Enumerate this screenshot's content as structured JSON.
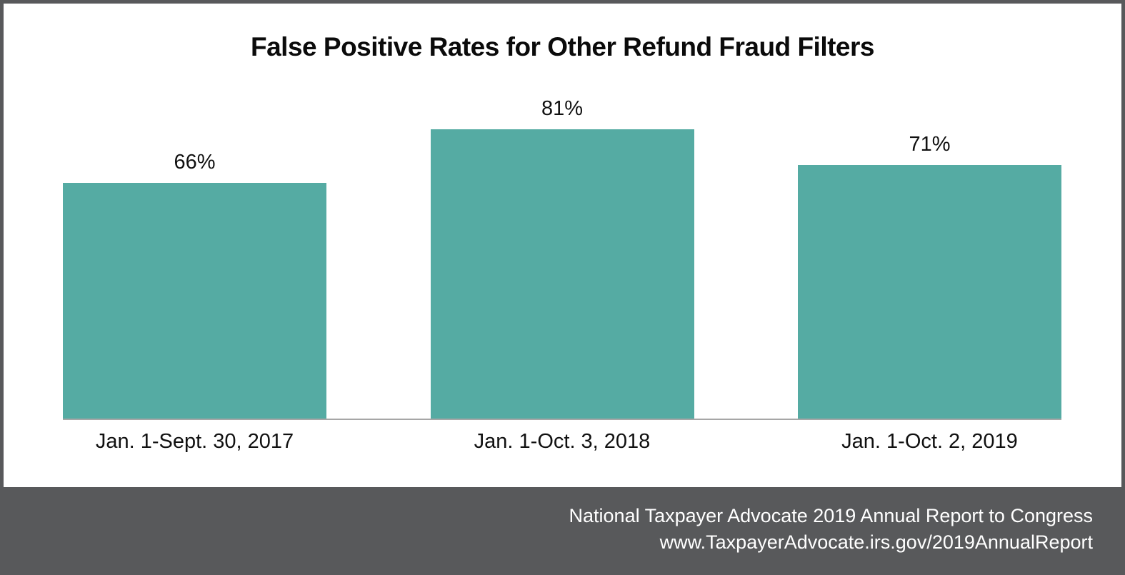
{
  "title": "False Positive Rates for Other Refund Fraud Filters",
  "chart_data": {
    "type": "bar",
    "title": "False Positive Rates for Other Refund Fraud Filters",
    "categories": [
      "Jan. 1-Sept. 30, 2017",
      "Jan. 1-Oct. 3, 2018",
      "Jan. 1-Oct. 2, 2019"
    ],
    "values": [
      66,
      81,
      71
    ],
    "value_labels": [
      "66%",
      "81%",
      "71%"
    ],
    "xlabel": "",
    "ylabel": "",
    "ylim": [
      0,
      90
    ],
    "grid": false,
    "legend_position": "none",
    "bar_color": "#55ABA3",
    "baseline_color": "#A6A6A6"
  },
  "footer": {
    "line1": "National Taxpayer Advocate 2019 Annual Report to Congress",
    "line2": "www.TaxpayerAdvocate.irs.gov/2019AnnualReport",
    "background": "#58595B",
    "text_color": "#FFFFFF"
  },
  "frame": {
    "border_color": "#58595B"
  }
}
